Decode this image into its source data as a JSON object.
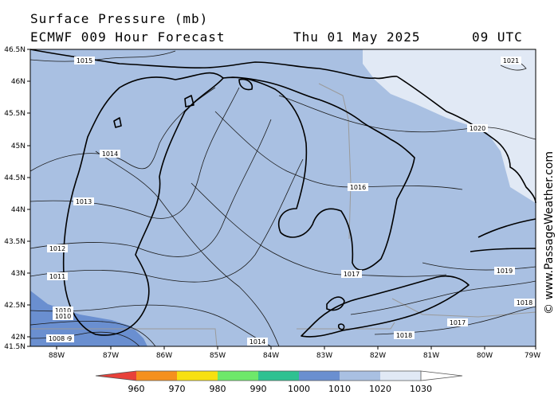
{
  "header": {
    "title": "Surface Pressure (mb)",
    "model": "ECMWF 009 Hour Forecast",
    "date": "Thu 01 May 2025",
    "utc": "09 UTC"
  },
  "map": {
    "lat_labels": [
      "46.5N",
      "46N",
      "45.5N",
      "45N",
      "44.5N",
      "44N",
      "43.5N",
      "43N",
      "42.5N",
      "42N",
      "41.5N"
    ],
    "lon_labels": [
      "88W",
      "87W",
      "86W",
      "85W",
      "84W",
      "83W",
      "82W",
      "81W",
      "80W",
      "79W"
    ],
    "isobar_labels": [
      {
        "id": "1015",
        "text": "1015"
      },
      {
        "id": "1014a",
        "text": "1014"
      },
      {
        "id": "1013",
        "text": "1013"
      },
      {
        "id": "1012",
        "text": "1012"
      },
      {
        "id": "1011",
        "text": "1011"
      },
      {
        "id": "1010",
        "text": "1010"
      },
      {
        "id": "1009",
        "text": "1009"
      },
      {
        "id": "1008",
        "text": "1008"
      },
      {
        "id": "1014b",
        "text": "1014"
      },
      {
        "id": "1021",
        "text": "1021"
      },
      {
        "id": "1020",
        "text": "1020"
      },
      {
        "id": "1016",
        "text": "1016"
      },
      {
        "id": "1017a",
        "text": "1017"
      },
      {
        "id": "1019",
        "text": "1019"
      },
      {
        "id": "1018a",
        "text": "1018"
      },
      {
        "id": "1018b",
        "text": "1018"
      },
      {
        "id": "1017b",
        "text": "1017"
      }
    ],
    "colors": {
      "band_1010": "#6a8fd0",
      "band_1020": "#a9c0e2",
      "band_1030": "#e1e9f5",
      "coast": "#000000",
      "border": "#9a9a9a"
    }
  },
  "credit": "© www.PassageWeather.com",
  "legend": {
    "ticks": [
      "960",
      "970",
      "980",
      "990",
      "1000",
      "1010",
      "1020",
      "1030"
    ],
    "colors": [
      "#e8413a",
      "#f5901e",
      "#f7e011",
      "#6ee86a",
      "#2fc191",
      "#6a8fd0",
      "#a9c0e2",
      "#e1e9f5"
    ]
  }
}
